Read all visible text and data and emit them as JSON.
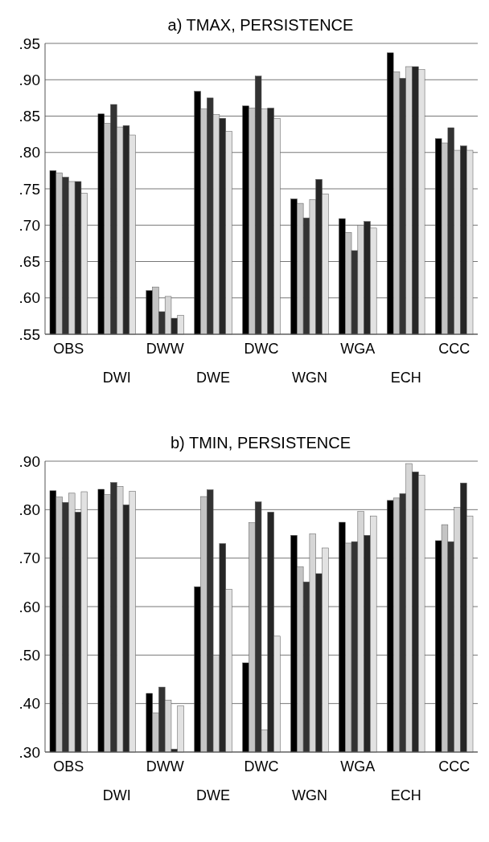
{
  "chart_data": [
    {
      "type": "bar",
      "title": "a) TMAX, PERSISTENCE",
      "categories": [
        "OBS",
        "DWI",
        "DWW",
        "DWE",
        "DWC",
        "WGN",
        "WGA",
        "ECH",
        "CCC"
      ],
      "ylim": [
        0.55,
        0.95
      ],
      "yticks": [
        {
          "value": 0.55,
          "label": ".55"
        },
        {
          "value": 0.6,
          "label": ".60"
        },
        {
          "value": 0.65,
          "label": ".65"
        },
        {
          "value": 0.7,
          "label": ".70"
        },
        {
          "value": 0.75,
          "label": ".75"
        },
        {
          "value": 0.8,
          "label": ".80"
        },
        {
          "value": 0.85,
          "label": ".85"
        },
        {
          "value": 0.9,
          "label": ".90"
        },
        {
          "value": 0.95,
          "label": ".95"
        }
      ],
      "grid": "y",
      "series": [
        {
          "color": "#000000",
          "values": [
            0.775,
            0.853,
            0.61,
            0.884,
            0.864,
            0.736,
            0.709,
            0.937,
            0.819
          ]
        },
        {
          "color": "#c4c4c4",
          "values": [
            0.772,
            0.84,
            0.615,
            0.86,
            0.861,
            0.73,
            0.69,
            0.911,
            0.813
          ]
        },
        {
          "color": "#333333",
          "values": [
            0.766,
            0.866,
            0.581,
            0.875,
            0.905,
            0.71,
            0.665,
            0.902,
            0.834
          ]
        },
        {
          "color": "#d6d6d6",
          "values": [
            0.76,
            0.835,
            0.602,
            0.852,
            0.86,
            0.735,
            0.7,
            0.918,
            0.803
          ]
        },
        {
          "color": "#262626",
          "values": [
            0.76,
            0.837,
            0.572,
            0.847,
            0.861,
            0.763,
            0.705,
            0.918,
            0.809
          ]
        },
        {
          "color": "#e2e2e2",
          "values": [
            0.744,
            0.824,
            0.576,
            0.829,
            0.847,
            0.743,
            0.696,
            0.914,
            0.803
          ]
        }
      ]
    },
    {
      "type": "bar",
      "title": "b) TMIN, PERSISTENCE",
      "categories": [
        "OBS",
        "DWI",
        "DWW",
        "DWE",
        "DWC",
        "WGN",
        "WGA",
        "ECH",
        "CCC"
      ],
      "ylim": [
        0.3,
        0.9
      ],
      "yticks": [
        {
          "value": 0.3,
          "label": ".30"
        },
        {
          "value": 0.4,
          "label": ".40"
        },
        {
          "value": 0.5,
          "label": ".50"
        },
        {
          "value": 0.6,
          "label": ".60"
        },
        {
          "value": 0.7,
          "label": ".70"
        },
        {
          "value": 0.8,
          "label": ".80"
        },
        {
          "value": 0.9,
          "label": ".90"
        }
      ],
      "grid": "y",
      "series": [
        {
          "color": "#000000",
          "values": [
            0.839,
            0.842,
            0.421,
            0.641,
            0.484,
            0.747,
            0.774,
            0.819,
            0.736
          ]
        },
        {
          "color": "#c4c4c4",
          "values": [
            0.826,
            0.831,
            0.381,
            0.827,
            0.773,
            0.682,
            0.731,
            0.824,
            0.769
          ]
        },
        {
          "color": "#333333",
          "values": [
            0.815,
            0.856,
            0.434,
            0.841,
            0.816,
            0.651,
            0.734,
            0.833,
            0.734
          ]
        },
        {
          "color": "#d6d6d6",
          "values": [
            0.834,
            0.848,
            0.407,
            0.5,
            0.346,
            0.75,
            0.796,
            0.895,
            0.805
          ]
        },
        {
          "color": "#262626",
          "values": [
            0.795,
            0.81,
            0.306,
            0.73,
            0.795,
            0.668,
            0.747,
            0.878,
            0.855
          ]
        },
        {
          "color": "#e2e2e2",
          "values": [
            0.837,
            0.838,
            0.395,
            0.636,
            0.539,
            0.721,
            0.787,
            0.871,
            0.787
          ]
        }
      ]
    }
  ]
}
